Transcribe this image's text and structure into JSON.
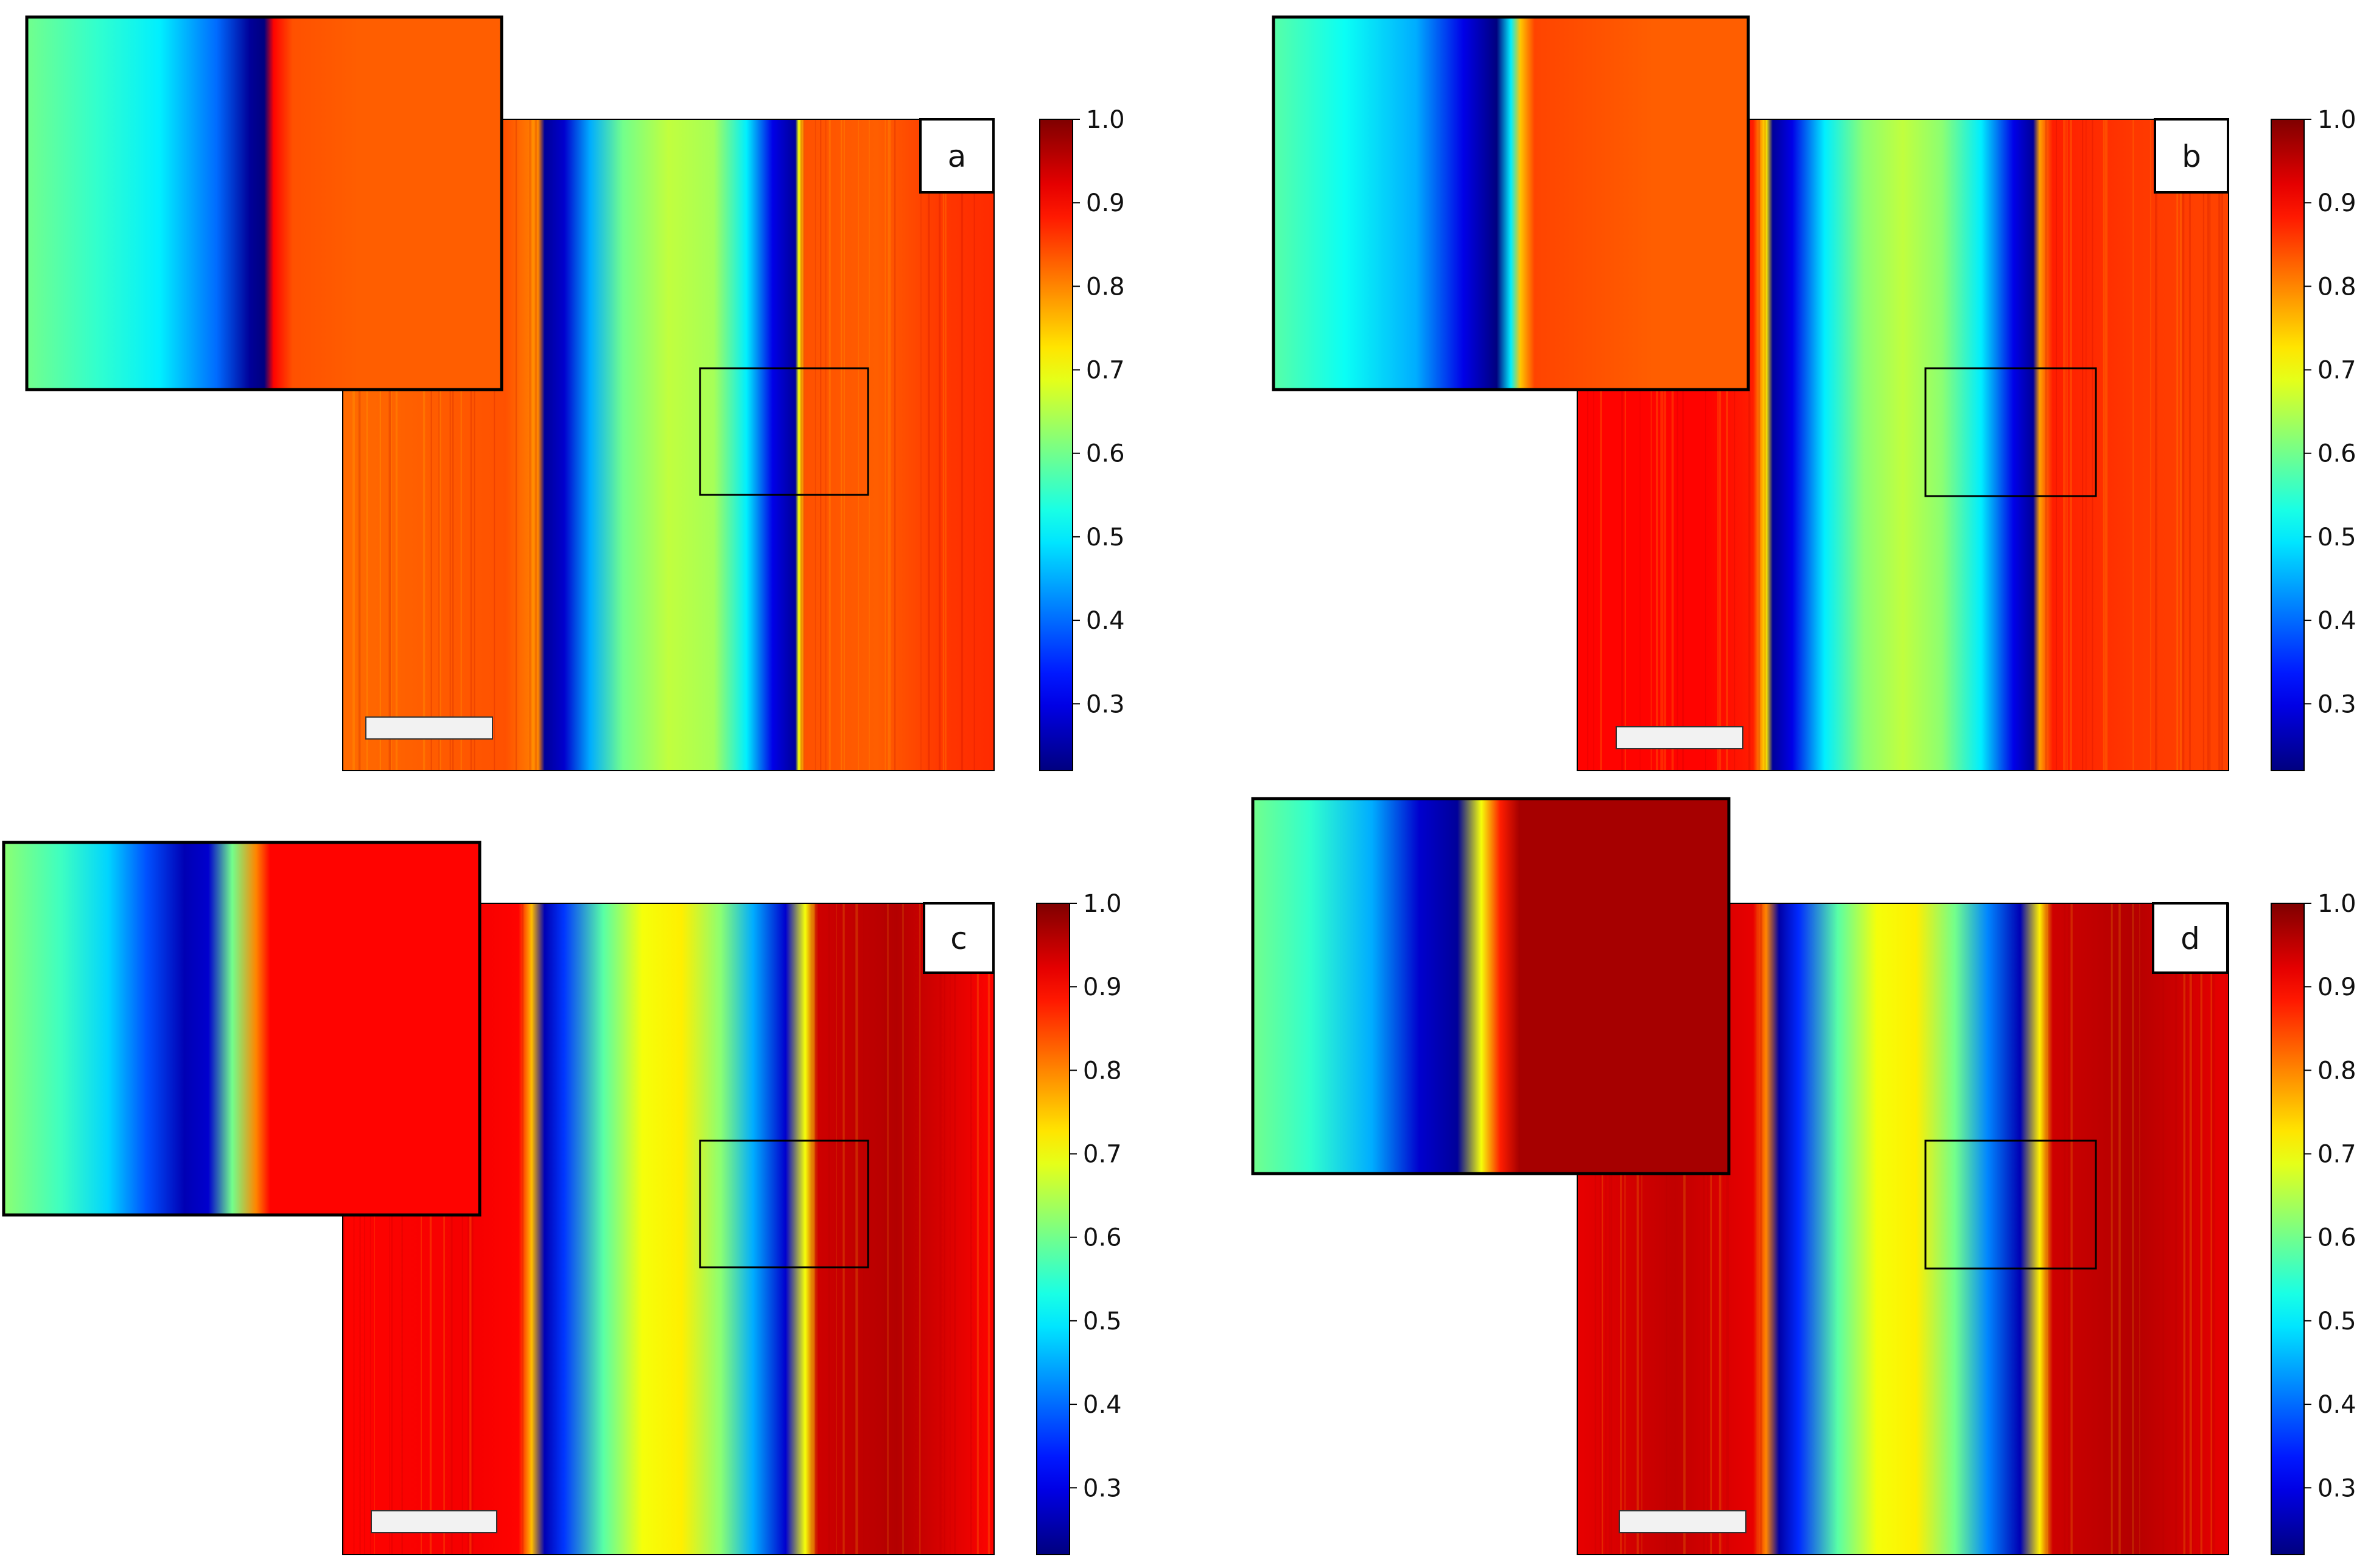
{
  "figure": {
    "description_free": true,
    "colormap": "jet",
    "colormap_stops": [
      "#00007f",
      "#0000ff",
      "#007fff",
      "#00ffff",
      "#7fff7f",
      "#ffff00",
      "#ff7f00",
      "#ff0000",
      "#7f0000"
    ],
    "colors": {
      "frame": "#000000",
      "scale_bar": "#f2f2f2",
      "label_box": "#ffffff"
    }
  },
  "chart_data": [
    {
      "type": "heatmap",
      "panel": "a",
      "colorbar": {
        "vmin": 0.22,
        "vmax": 1.0,
        "ticks": [
          0.3,
          0.4,
          0.5,
          0.6,
          0.7,
          0.8,
          0.9,
          1.0
        ],
        "tick_labels": [
          "0.3",
          "0.4",
          "0.5",
          "0.6",
          "0.7",
          "0.8",
          "0.9",
          "1.0"
        ]
      },
      "column_profile": [
        [
          0,
          0.82
        ],
        [
          0.12,
          0.83
        ],
        [
          0.25,
          0.84
        ],
        [
          0.3,
          0.8
        ],
        [
          0.31,
          0.24
        ],
        [
          0.34,
          0.28
        ],
        [
          0.38,
          0.45
        ],
        [
          0.43,
          0.6
        ],
        [
          0.5,
          0.66
        ],
        [
          0.57,
          0.64
        ],
        [
          0.62,
          0.5
        ],
        [
          0.66,
          0.3
        ],
        [
          0.695,
          0.24
        ],
        [
          0.7,
          0.7
        ],
        [
          0.71,
          0.84
        ],
        [
          0.82,
          0.83
        ],
        [
          0.92,
          0.86
        ],
        [
          1.0,
          0.87
        ]
      ],
      "inset_profile": [
        [
          0,
          0.6
        ],
        [
          0.15,
          0.55
        ],
        [
          0.28,
          0.5
        ],
        [
          0.4,
          0.4
        ],
        [
          0.47,
          0.24
        ],
        [
          0.5,
          0.22
        ],
        [
          0.52,
          0.9
        ],
        [
          0.56,
          0.84
        ],
        [
          0.7,
          0.83
        ],
        [
          1.0,
          0.83
        ]
      ]
    },
    {
      "type": "heatmap",
      "panel": "b",
      "colorbar": {
        "vmin": 0.22,
        "vmax": 1.0,
        "ticks": [
          0.3,
          0.4,
          0.5,
          0.6,
          0.7,
          0.8,
          0.9,
          1.0
        ],
        "tick_labels": [
          "0.3",
          "0.4",
          "0.5",
          "0.6",
          "0.7",
          "0.8",
          "0.9",
          "1.0"
        ]
      },
      "column_profile": [
        [
          0,
          0.9
        ],
        [
          0.2,
          0.9
        ],
        [
          0.27,
          0.88
        ],
        [
          0.29,
          0.72
        ],
        [
          0.3,
          0.24
        ],
        [
          0.33,
          0.3
        ],
        [
          0.38,
          0.5
        ],
        [
          0.44,
          0.62
        ],
        [
          0.5,
          0.66
        ],
        [
          0.56,
          0.62
        ],
        [
          0.62,
          0.5
        ],
        [
          0.67,
          0.3
        ],
        [
          0.7,
          0.24
        ],
        [
          0.71,
          0.78
        ],
        [
          0.73,
          0.88
        ],
        [
          0.85,
          0.86
        ],
        [
          1.0,
          0.85
        ]
      ],
      "inset_profile": [
        [
          0,
          0.58
        ],
        [
          0.15,
          0.52
        ],
        [
          0.3,
          0.45
        ],
        [
          0.4,
          0.3
        ],
        [
          0.47,
          0.22
        ],
        [
          0.5,
          0.5
        ],
        [
          0.52,
          0.75
        ],
        [
          0.55,
          0.85
        ],
        [
          0.8,
          0.83
        ],
        [
          1.0,
          0.83
        ]
      ]
    },
    {
      "type": "heatmap",
      "panel": "c",
      "colorbar": {
        "vmin": 0.22,
        "vmax": 1.0,
        "ticks": [
          0.3,
          0.4,
          0.5,
          0.6,
          0.7,
          0.8,
          0.9,
          1.0
        ],
        "tick_labels": [
          "0.3",
          "0.4",
          "0.5",
          "0.6",
          "0.7",
          "0.8",
          "0.9",
          "1.0"
        ]
      },
      "column_profile": [
        [
          0,
          0.9
        ],
        [
          0.2,
          0.91
        ],
        [
          0.27,
          0.9
        ],
        [
          0.29,
          0.76
        ],
        [
          0.31,
          0.26
        ],
        [
          0.34,
          0.36
        ],
        [
          0.4,
          0.58
        ],
        [
          0.46,
          0.7
        ],
        [
          0.52,
          0.72
        ],
        [
          0.58,
          0.62
        ],
        [
          0.63,
          0.45
        ],
        [
          0.68,
          0.28
        ],
        [
          0.71,
          0.7
        ],
        [
          0.73,
          0.94
        ],
        [
          0.85,
          0.96
        ],
        [
          1.0,
          0.9
        ]
      ],
      "inset_profile": [
        [
          0,
          0.62
        ],
        [
          0.12,
          0.56
        ],
        [
          0.22,
          0.48
        ],
        [
          0.3,
          0.38
        ],
        [
          0.38,
          0.26
        ],
        [
          0.43,
          0.28
        ],
        [
          0.48,
          0.6
        ],
        [
          0.53,
          0.8
        ],
        [
          0.56,
          0.9
        ],
        [
          0.8,
          0.9
        ],
        [
          1.0,
          0.9
        ]
      ]
    },
    {
      "type": "heatmap",
      "panel": "d",
      "colorbar": {
        "vmin": 0.22,
        "vmax": 1.0,
        "ticks": [
          0.3,
          0.4,
          0.5,
          0.6,
          0.7,
          0.8,
          0.9,
          1.0
        ],
        "tick_labels": [
          "0.3",
          "0.4",
          "0.5",
          "0.6",
          "0.7",
          "0.8",
          "0.9",
          "1.0"
        ]
      },
      "column_profile": [
        [
          0,
          0.92
        ],
        [
          0.15,
          0.95
        ],
        [
          0.27,
          0.92
        ],
        [
          0.29,
          0.8
        ],
        [
          0.31,
          0.25
        ],
        [
          0.34,
          0.35
        ],
        [
          0.4,
          0.58
        ],
        [
          0.46,
          0.7
        ],
        [
          0.52,
          0.72
        ],
        [
          0.58,
          0.6
        ],
        [
          0.63,
          0.42
        ],
        [
          0.68,
          0.26
        ],
        [
          0.71,
          0.72
        ],
        [
          0.73,
          0.94
        ],
        [
          0.85,
          0.96
        ],
        [
          1.0,
          0.92
        ]
      ],
      "inset_profile": [
        [
          0,
          0.6
        ],
        [
          0.12,
          0.55
        ],
        [
          0.25,
          0.45
        ],
        [
          0.35,
          0.28
        ],
        [
          0.43,
          0.24
        ],
        [
          0.48,
          0.7
        ],
        [
          0.52,
          0.88
        ],
        [
          0.56,
          0.97
        ],
        [
          0.8,
          0.97
        ],
        [
          1.0,
          0.97
        ]
      ]
    }
  ]
}
